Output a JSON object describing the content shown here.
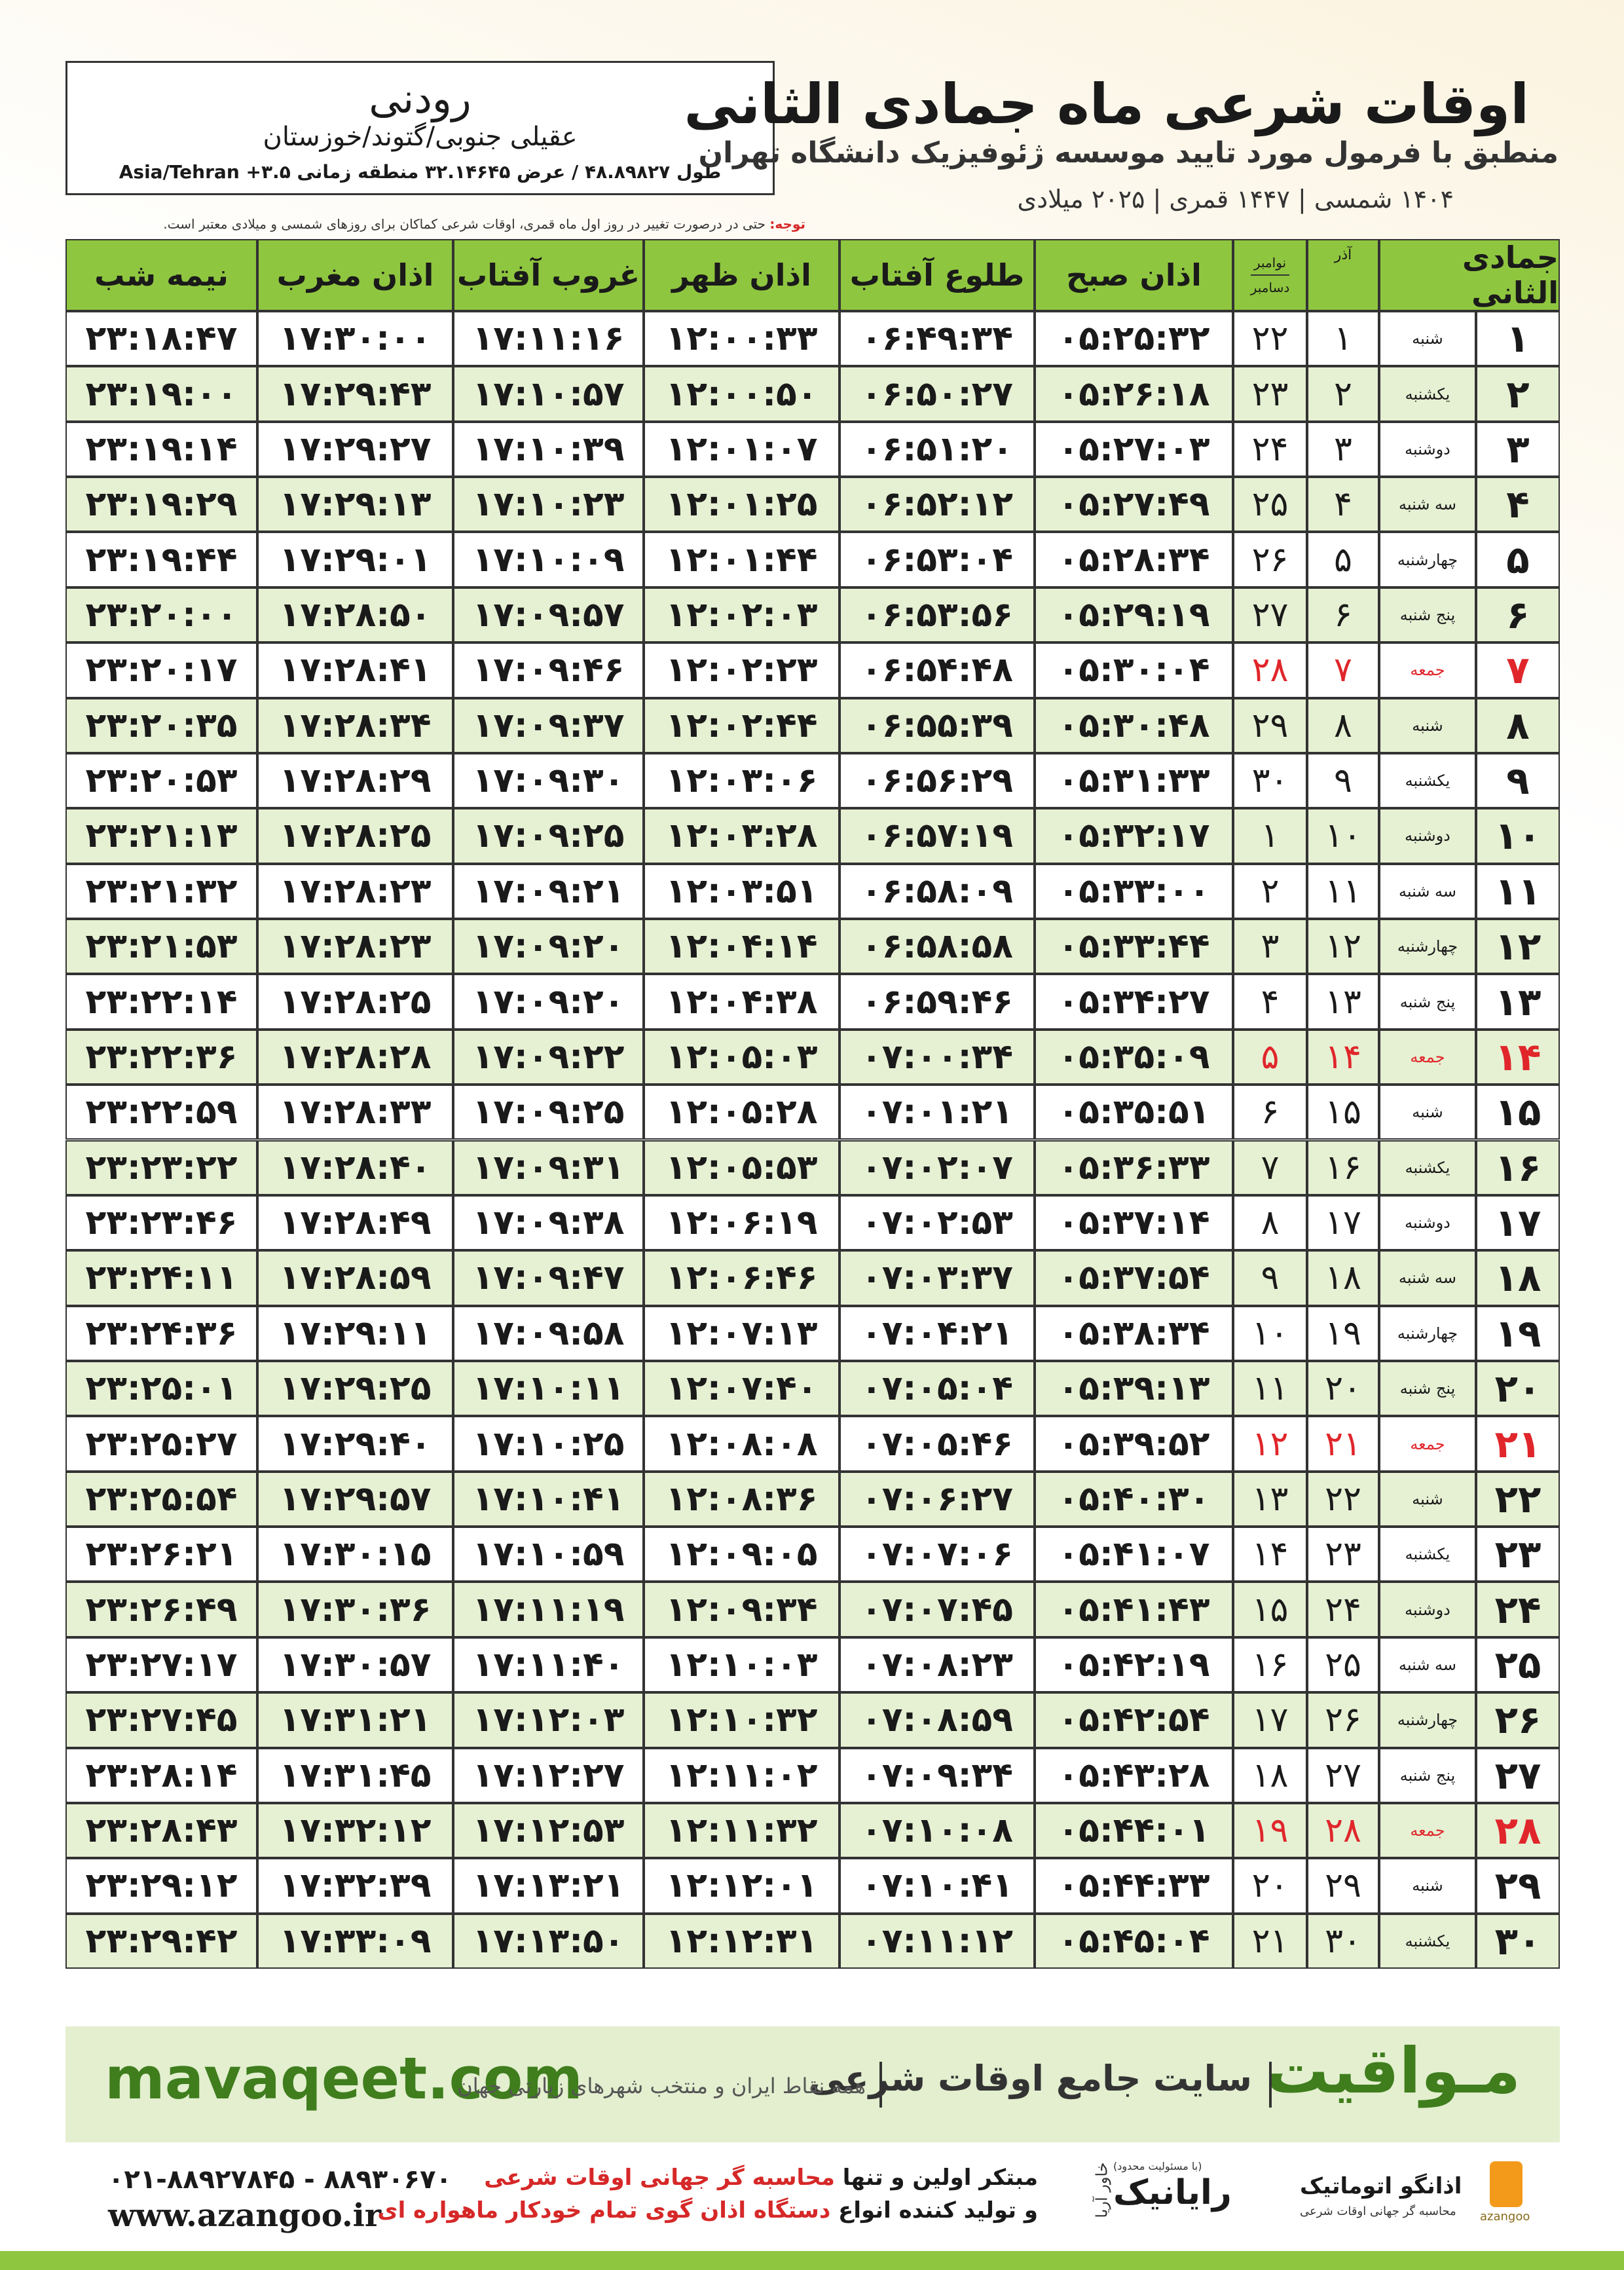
{
  "header": {
    "title": "اوقات شرعی ماه جمادی الثانی",
    "subtitle": "منطبق با فرمول مورد تایید موسسه ژئوفیزیک دانشگاه تهران",
    "years": "۱۴۰۴ شمسی | ۱۴۴۷ قمری | ۲۰۲۵ میلادی"
  },
  "location": {
    "city": "رودنی",
    "region": "عقیلی جنوبی/گتوند/خوزستان",
    "coords": "طول ۴۸.۸۹۸۲۷ / عرض ۳۲.۱۴۶۴۵ منطقه زمانی ۳.۵+ Asia/Tehran"
  },
  "note": {
    "label": "توجه:",
    "text": "حتی در درصورت تغییر در روز اول ماه قمری، اوقات شرعی کماکان برای روزهای شمسی و میلادی معتبر است."
  },
  "table": {
    "columns": [
      "جمادی الثانی",
      "آذر",
      [
        "نوامبر",
        "دسامبر"
      ],
      "اذان صبح",
      "طلوع آفتاب",
      "اذان ظهر",
      "غروب آفتاب",
      "اذان مغرب",
      "نیمه شب"
    ],
    "header_color": "#8fc63f",
    "stripe_color": "#e6f0d3",
    "holiday_color": "#e0262b",
    "rows": [
      {
        "cells": [
          "۱",
          "شنبه",
          "۱",
          "۲۲",
          "۰۵:۲۵:۳۲",
          "۰۶:۴۹:۳۴",
          "۱۲:۰۰:۳۳",
          "۱۷:۱۱:۱۶",
          "۱۷:۳۰:۰۰",
          "۲۳:۱۸:۴۷"
        ]
      },
      {
        "cells": [
          "۲",
          "یکشنبه",
          "۲",
          "۲۳",
          "۰۵:۲۶:۱۸",
          "۰۶:۵۰:۲۷",
          "۱۲:۰۰:۵۰",
          "۱۷:۱۰:۵۷",
          "۱۷:۲۹:۴۳",
          "۲۳:۱۹:۰۰"
        ]
      },
      {
        "cells": [
          "۳",
          "دوشنبه",
          "۳",
          "۲۴",
          "۰۵:۲۷:۰۳",
          "۰۶:۵۱:۲۰",
          "۱۲:۰۱:۰۷",
          "۱۷:۱۰:۳۹",
          "۱۷:۲۹:۲۷",
          "۲۳:۱۹:۱۴"
        ]
      },
      {
        "cells": [
          "۴",
          "سه شنبه",
          "۴",
          "۲۵",
          "۰۵:۲۷:۴۹",
          "۰۶:۵۲:۱۲",
          "۱۲:۰۱:۲۵",
          "۱۷:۱۰:۲۳",
          "۱۷:۲۹:۱۳",
          "۲۳:۱۹:۲۹"
        ]
      },
      {
        "cells": [
          "۵",
          "چهارشنبه",
          "۵",
          "۲۶",
          "۰۵:۲۸:۳۴",
          "۰۶:۵۳:۰۴",
          "۱۲:۰۱:۴۴",
          "۱۷:۱۰:۰۹",
          "۱۷:۲۹:۰۱",
          "۲۳:۱۹:۴۴"
        ]
      },
      {
        "cells": [
          "۶",
          "پنج شنبه",
          "۶",
          "۲۷",
          "۰۵:۲۹:۱۹",
          "۰۶:۵۳:۵۶",
          "۱۲:۰۲:۰۳",
          "۱۷:۰۹:۵۷",
          "۱۷:۲۸:۵۰",
          "۲۳:۲۰:۰۰"
        ]
      },
      {
        "cells": [
          "۷",
          "جمعه",
          "۷",
          "۲۸",
          "۰۵:۳۰:۰۴",
          "۰۶:۵۴:۴۸",
          "۱۲:۰۲:۲۳",
          "۱۷:۰۹:۴۶",
          "۱۷:۲۸:۴۱",
          "۲۳:۲۰:۱۷"
        ],
        "holiday": true
      },
      {
        "cells": [
          "۸",
          "شنبه",
          "۸",
          "۲۹",
          "۰۵:۳۰:۴۸",
          "۰۶:۵۵:۳۹",
          "۱۲:۰۲:۴۴",
          "۱۷:۰۹:۳۷",
          "۱۷:۲۸:۳۴",
          "۲۳:۲۰:۳۵"
        ]
      },
      {
        "cells": [
          "۹",
          "یکشنبه",
          "۹",
          "۳۰",
          "۰۵:۳۱:۳۳",
          "۰۶:۵۶:۲۹",
          "۱۲:۰۳:۰۶",
          "۱۷:۰۹:۳۰",
          "۱۷:۲۸:۲۹",
          "۲۳:۲۰:۵۳"
        ]
      },
      {
        "cells": [
          "۱۰",
          "دوشنبه",
          "۱۰",
          "۱",
          "۰۵:۳۲:۱۷",
          "۰۶:۵۷:۱۹",
          "۱۲:۰۳:۲۸",
          "۱۷:۰۹:۲۵",
          "۱۷:۲۸:۲۵",
          "۲۳:۲۱:۱۳"
        ]
      },
      {
        "cells": [
          "۱۱",
          "سه شنبه",
          "۱۱",
          "۲",
          "۰۵:۳۳:۰۰",
          "۰۶:۵۸:۰۹",
          "۱۲:۰۳:۵۱",
          "۱۷:۰۹:۲۱",
          "۱۷:۲۸:۲۳",
          "۲۳:۲۱:۳۲"
        ]
      },
      {
        "cells": [
          "۱۲",
          "چهارشنبه",
          "۱۲",
          "۳",
          "۰۵:۳۳:۴۴",
          "۰۶:۵۸:۵۸",
          "۱۲:۰۴:۱۴",
          "۱۷:۰۹:۲۰",
          "۱۷:۲۸:۲۳",
          "۲۳:۲۱:۵۳"
        ]
      },
      {
        "cells": [
          "۱۳",
          "پنج شنبه",
          "۱۳",
          "۴",
          "۰۵:۳۴:۲۷",
          "۰۶:۵۹:۴۶",
          "۱۲:۰۴:۳۸",
          "۱۷:۰۹:۲۰",
          "۱۷:۲۸:۲۵",
          "۲۳:۲۲:۱۴"
        ]
      },
      {
        "cells": [
          "۱۴",
          "جمعه",
          "۱۴",
          "۵",
          "۰۵:۳۵:۰۹",
          "۰۷:۰۰:۳۴",
          "۱۲:۰۵:۰۳",
          "۱۷:۰۹:۲۲",
          "۱۷:۲۸:۲۸",
          "۲۳:۲۲:۳۶"
        ],
        "holiday": true
      },
      {
        "cells": [
          "۱۵",
          "شنبه",
          "۱۵",
          "۶",
          "۰۵:۳۵:۵۱",
          "۰۷:۰۱:۲۱",
          "۱۲:۰۵:۲۸",
          "۱۷:۰۹:۲۵",
          "۱۷:۲۸:۳۳",
          "۲۳:۲۲:۵۹"
        ]
      },
      {
        "cells": [
          "۱۶",
          "یکشنبه",
          "۱۶",
          "۷",
          "۰۵:۳۶:۳۳",
          "۰۷:۰۲:۰۷",
          "۱۲:۰۵:۵۳",
          "۱۷:۰۹:۳۱",
          "۱۷:۲۸:۴۰",
          "۲۳:۲۳:۲۲"
        ]
      },
      {
        "cells": [
          "۱۷",
          "دوشنبه",
          "۱۷",
          "۸",
          "۰۵:۳۷:۱۴",
          "۰۷:۰۲:۵۳",
          "۱۲:۰۶:۱۹",
          "۱۷:۰۹:۳۸",
          "۱۷:۲۸:۴۹",
          "۲۳:۲۳:۴۶"
        ]
      },
      {
        "cells": [
          "۱۸",
          "سه شنبه",
          "۱۸",
          "۹",
          "۰۵:۳۷:۵۴",
          "۰۷:۰۳:۳۷",
          "۱۲:۰۶:۴۶",
          "۱۷:۰۹:۴۷",
          "۱۷:۲۸:۵۹",
          "۲۳:۲۴:۱۱"
        ]
      },
      {
        "cells": [
          "۱۹",
          "چهارشنبه",
          "۱۹",
          "۱۰",
          "۰۵:۳۸:۳۴",
          "۰۷:۰۴:۲۱",
          "۱۲:۰۷:۱۳",
          "۱۷:۰۹:۵۸",
          "۱۷:۲۹:۱۱",
          "۲۳:۲۴:۳۶"
        ]
      },
      {
        "cells": [
          "۲۰",
          "پنج شنبه",
          "۲۰",
          "۱۱",
          "۰۵:۳۹:۱۳",
          "۰۷:۰۵:۰۴",
          "۱۲:۰۷:۴۰",
          "۱۷:۱۰:۱۱",
          "۱۷:۲۹:۲۵",
          "۲۳:۲۵:۰۱"
        ]
      },
      {
        "cells": [
          "۲۱",
          "جمعه",
          "۲۱",
          "۱۲",
          "۰۵:۳۹:۵۲",
          "۰۷:۰۵:۴۶",
          "۱۲:۰۸:۰۸",
          "۱۷:۱۰:۲۵",
          "۱۷:۲۹:۴۰",
          "۲۳:۲۵:۲۷"
        ],
        "holiday": true
      },
      {
        "cells": [
          "۲۲",
          "شنبه",
          "۲۲",
          "۱۳",
          "۰۵:۴۰:۳۰",
          "۰۷:۰۶:۲۷",
          "۱۲:۰۸:۳۶",
          "۱۷:۱۰:۴۱",
          "۱۷:۲۹:۵۷",
          "۲۳:۲۵:۵۴"
        ]
      },
      {
        "cells": [
          "۲۳",
          "یکشنبه",
          "۲۳",
          "۱۴",
          "۰۵:۴۱:۰۷",
          "۰۷:۰۷:۰۶",
          "۱۲:۰۹:۰۵",
          "۱۷:۱۰:۵۹",
          "۱۷:۳۰:۱۵",
          "۲۳:۲۶:۲۱"
        ]
      },
      {
        "cells": [
          "۲۴",
          "دوشنبه",
          "۲۴",
          "۱۵",
          "۰۵:۴۱:۴۳",
          "۰۷:۰۷:۴۵",
          "۱۲:۰۹:۳۴",
          "۱۷:۱۱:۱۹",
          "۱۷:۳۰:۳۶",
          "۲۳:۲۶:۴۹"
        ]
      },
      {
        "cells": [
          "۲۵",
          "سه شنبه",
          "۲۵",
          "۱۶",
          "۰۵:۴۲:۱۹",
          "۰۷:۰۸:۲۳",
          "۱۲:۱۰:۰۳",
          "۱۷:۱۱:۴۰",
          "۱۷:۳۰:۵۷",
          "۲۳:۲۷:۱۷"
        ]
      },
      {
        "cells": [
          "۲۶",
          "چهارشنبه",
          "۲۶",
          "۱۷",
          "۰۵:۴۲:۵۴",
          "۰۷:۰۸:۵۹",
          "۱۲:۱۰:۳۲",
          "۱۷:۱۲:۰۳",
          "۱۷:۳۱:۲۱",
          "۲۳:۲۷:۴۵"
        ]
      },
      {
        "cells": [
          "۲۷",
          "پنج شنبه",
          "۲۷",
          "۱۸",
          "۰۵:۴۳:۲۸",
          "۰۷:۰۹:۳۴",
          "۱۲:۱۱:۰۲",
          "۱۷:۱۲:۲۷",
          "۱۷:۳۱:۴۵",
          "۲۳:۲۸:۱۴"
        ]
      },
      {
        "cells": [
          "۲۸",
          "جمعه",
          "۲۸",
          "۱۹",
          "۰۵:۴۴:۰۱",
          "۰۷:۱۰:۰۸",
          "۱۲:۱۱:۳۲",
          "۱۷:۱۲:۵۳",
          "۱۷:۳۲:۱۲",
          "۲۳:۲۸:۴۳"
        ],
        "holiday": true
      },
      {
        "cells": [
          "۲۹",
          "شنبه",
          "۲۹",
          "۲۰",
          "۰۵:۴۴:۳۳",
          "۰۷:۱۰:۴۱",
          "۱۲:۱۲:۰۱",
          "۱۷:۱۳:۲۱",
          "۱۷:۳۲:۳۹",
          "۲۳:۲۹:۱۲"
        ]
      },
      {
        "cells": [
          "۳۰",
          "یکشنبه",
          "۳۰",
          "۲۱",
          "۰۵:۴۵:۰۴",
          "۰۷:۱۱:۱۲",
          "۱۲:۱۲:۳۱",
          "۱۷:۱۳:۵۰",
          "۱۷:۳۳:۰۹",
          "۲۳:۲۹:۴۲"
        ]
      }
    ]
  },
  "banner": {
    "site": "mavaqeet.com",
    "brand": "مـواقیت",
    "tagline": "سایت جامع اوقات شرعی",
    "subtagline": "همه نقاط ایران و منتخب شهرهای زیارتی جهان"
  },
  "footer": {
    "phone": "۰۲۱-۸۸۹۲۷۸۴۵ - ۸۸۹۳۰۶۷۰",
    "url": "www.azangoo.ir",
    "line1": [
      "مبتکر اولین و تنها ",
      "محاسبه گر جهانی اوقات شرعی"
    ],
    "line2": [
      "و تولید کننده انواع ",
      "دستگاه اذان گوی تمام خودکار ماهواره ای"
    ],
    "logo1": {
      "small": "(با مسئولیت محدود)",
      "name": "رایانیک",
      "side": "خاور آریا"
    },
    "logo2": {
      "name": "اذانگو اتوماتیک",
      "sub": "محاسبه گر جهانی اوقات شرعی",
      "latin": "azangoo"
    }
  }
}
